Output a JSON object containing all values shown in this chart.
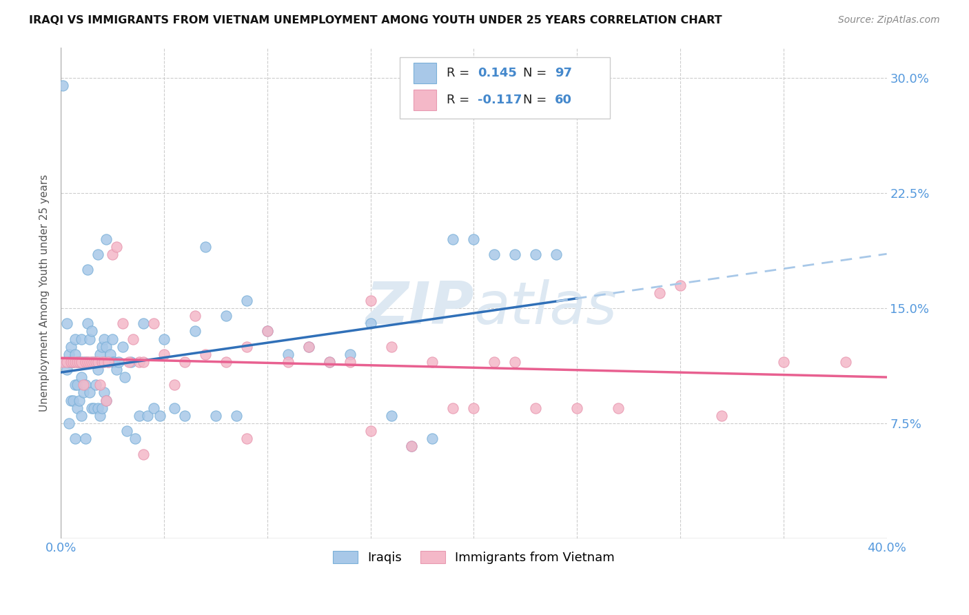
{
  "title": "IRAQI VS IMMIGRANTS FROM VIETNAM UNEMPLOYMENT AMONG YOUTH UNDER 25 YEARS CORRELATION CHART",
  "source": "Source: ZipAtlas.com",
  "ylabel": "Unemployment Among Youth under 25 years",
  "xlim": [
    0.0,
    0.4
  ],
  "ylim": [
    0.0,
    0.32
  ],
  "xticks": [
    0.0,
    0.05,
    0.1,
    0.15,
    0.2,
    0.25,
    0.3,
    0.35,
    0.4
  ],
  "xticklabels": [
    "0.0%",
    "",
    "",
    "",
    "",
    "",
    "",
    "",
    "40.0%"
  ],
  "yticks": [
    0.0,
    0.075,
    0.15,
    0.225,
    0.3
  ],
  "yticklabels_right": [
    "",
    "7.5%",
    "15.0%",
    "22.5%",
    "30.0%"
  ],
  "iraqis_R": "0.145",
  "iraqis_N": "97",
  "vietnam_R": "-0.117",
  "vietnam_N": "60",
  "iraqis_color": "#a8c8e8",
  "vietnam_color": "#f4b8c8",
  "iraqis_edge_color": "#7ab0d8",
  "vietnam_edge_color": "#e898b0",
  "iraqis_trend_color": "#3070b8",
  "vietnam_trend_color": "#e86090",
  "iraqis_trend_dashed_color": "#a8c8e8",
  "legend_color": "#4488cc",
  "watermark_color": "#e8eef4",
  "legend_label_1": "Iraqis",
  "legend_label_2": "Immigrants from Vietnam",
  "iraqis_x": [
    0.001,
    0.002,
    0.003,
    0.003,
    0.004,
    0.004,
    0.004,
    0.005,
    0.005,
    0.005,
    0.006,
    0.006,
    0.006,
    0.007,
    0.007,
    0.007,
    0.007,
    0.008,
    0.008,
    0.008,
    0.009,
    0.009,
    0.009,
    0.01,
    0.01,
    0.01,
    0.01,
    0.011,
    0.011,
    0.012,
    0.012,
    0.012,
    0.013,
    0.013,
    0.014,
    0.014,
    0.015,
    0.015,
    0.015,
    0.016,
    0.016,
    0.017,
    0.017,
    0.018,
    0.018,
    0.019,
    0.019,
    0.02,
    0.02,
    0.021,
    0.021,
    0.022,
    0.022,
    0.023,
    0.024,
    0.025,
    0.026,
    0.027,
    0.028,
    0.03,
    0.031,
    0.032,
    0.034,
    0.036,
    0.038,
    0.04,
    0.042,
    0.045,
    0.048,
    0.05,
    0.055,
    0.06,
    0.065,
    0.07,
    0.075,
    0.08,
    0.085,
    0.09,
    0.1,
    0.11,
    0.12,
    0.13,
    0.14,
    0.15,
    0.16,
    0.17,
    0.18,
    0.19,
    0.2,
    0.21,
    0.22,
    0.23,
    0.24,
    0.025,
    0.013,
    0.018,
    0.022
  ],
  "iraqis_y": [
    0.295,
    0.115,
    0.11,
    0.14,
    0.12,
    0.115,
    0.075,
    0.125,
    0.115,
    0.09,
    0.115,
    0.09,
    0.115,
    0.13,
    0.12,
    0.1,
    0.065,
    0.115,
    0.1,
    0.085,
    0.115,
    0.115,
    0.09,
    0.13,
    0.115,
    0.105,
    0.08,
    0.115,
    0.095,
    0.115,
    0.1,
    0.065,
    0.14,
    0.115,
    0.13,
    0.095,
    0.135,
    0.115,
    0.085,
    0.115,
    0.085,
    0.115,
    0.1,
    0.11,
    0.085,
    0.12,
    0.08,
    0.125,
    0.085,
    0.13,
    0.095,
    0.125,
    0.09,
    0.115,
    0.12,
    0.115,
    0.115,
    0.11,
    0.115,
    0.125,
    0.105,
    0.07,
    0.115,
    0.065,
    0.08,
    0.14,
    0.08,
    0.085,
    0.08,
    0.13,
    0.085,
    0.08,
    0.135,
    0.19,
    0.08,
    0.145,
    0.08,
    0.155,
    0.135,
    0.12,
    0.125,
    0.115,
    0.12,
    0.14,
    0.08,
    0.06,
    0.065,
    0.195,
    0.195,
    0.185,
    0.185,
    0.185,
    0.185,
    0.13,
    0.175,
    0.185,
    0.195
  ],
  "vietnam_x": [
    0.001,
    0.003,
    0.005,
    0.006,
    0.007,
    0.008,
    0.009,
    0.01,
    0.011,
    0.012,
    0.013,
    0.014,
    0.015,
    0.016,
    0.017,
    0.018,
    0.019,
    0.02,
    0.021,
    0.022,
    0.023,
    0.025,
    0.027,
    0.03,
    0.033,
    0.035,
    0.038,
    0.04,
    0.045,
    0.05,
    0.055,
    0.06,
    0.065,
    0.07,
    0.08,
    0.09,
    0.1,
    0.11,
    0.12,
    0.13,
    0.14,
    0.15,
    0.16,
    0.17,
    0.18,
    0.19,
    0.2,
    0.21,
    0.22,
    0.23,
    0.25,
    0.27,
    0.29,
    0.3,
    0.32,
    0.35,
    0.38,
    0.15,
    0.09,
    0.04
  ],
  "vietnam_y": [
    0.115,
    0.115,
    0.115,
    0.115,
    0.115,
    0.115,
    0.115,
    0.115,
    0.1,
    0.115,
    0.115,
    0.115,
    0.115,
    0.115,
    0.115,
    0.115,
    0.1,
    0.115,
    0.115,
    0.09,
    0.115,
    0.185,
    0.19,
    0.14,
    0.115,
    0.13,
    0.115,
    0.115,
    0.14,
    0.12,
    0.1,
    0.115,
    0.145,
    0.12,
    0.115,
    0.125,
    0.135,
    0.115,
    0.125,
    0.115,
    0.115,
    0.155,
    0.125,
    0.06,
    0.115,
    0.085,
    0.085,
    0.115,
    0.115,
    0.085,
    0.085,
    0.085,
    0.16,
    0.165,
    0.08,
    0.115,
    0.115,
    0.07,
    0.065,
    0.055
  ]
}
